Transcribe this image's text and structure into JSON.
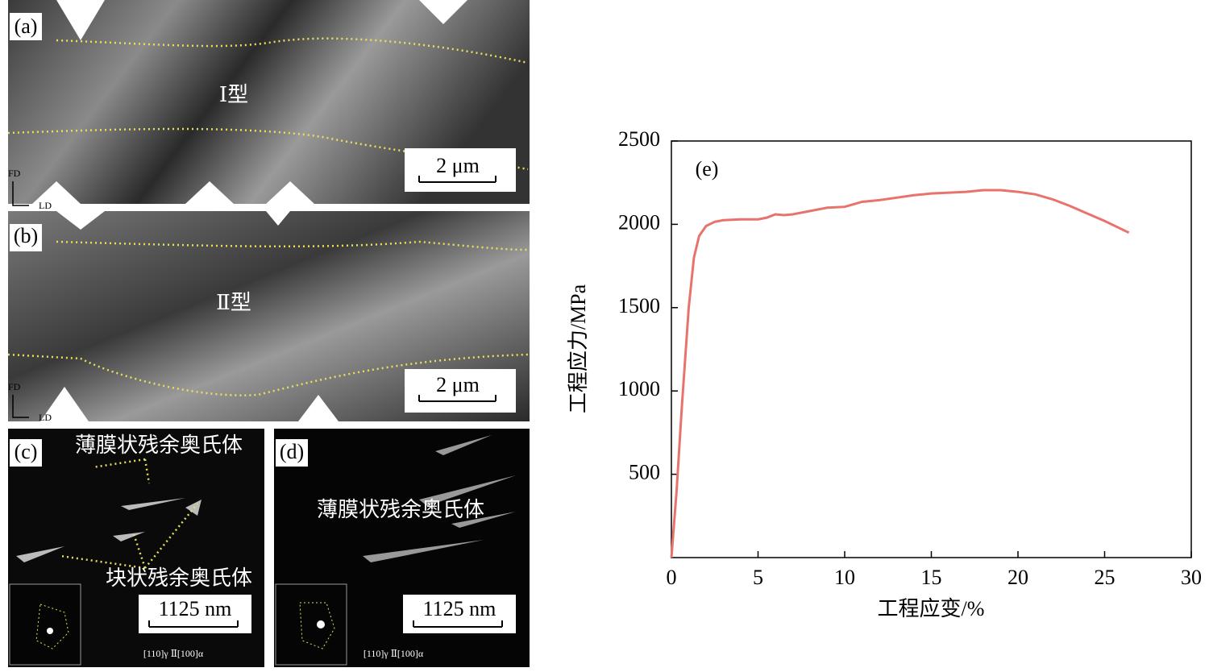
{
  "panels": [
    {
      "label": "(a)",
      "type_label": "Ⅰ型",
      "scale_bar": "2 μm",
      "axes": [
        "FD",
        "LD"
      ]
    },
    {
      "label": "(b)",
      "type_label": "Ⅱ型",
      "scale_bar": "2 μm",
      "axes": [
        "FD",
        "LD"
      ]
    },
    {
      "label": "(c)",
      "annotations": [
        "薄膜状残余奥氏体",
        "块状残余奥氏体"
      ],
      "scale_bar": "1125 nm",
      "diffraction": "[110]γ Ⅱ[100]α"
    },
    {
      "label": "(d)",
      "annotations": [
        "薄膜状残余奥氏体"
      ],
      "scale_bar": "1125 nm",
      "diffraction": "[110]γ Ⅱ[100]α"
    }
  ],
  "chart_data": {
    "type": "line",
    "annotation": "(e)",
    "xlabel": "工程应变/%",
    "ylabel": "工程应力/MPa",
    "x": [
      0,
      0.3,
      0.6,
      1.0,
      1.3,
      1.6,
      2,
      2.5,
      3,
      4,
      5,
      5.5,
      6,
      6.5,
      7,
      8,
      9,
      10,
      11,
      12,
      13,
      14,
      15,
      16,
      17,
      18,
      19,
      20,
      21,
      22,
      23,
      24,
      25,
      26.4
    ],
    "values": [
      0,
      400,
      900,
      1500,
      1800,
      1930,
      1990,
      2015,
      2025,
      2030,
      2030,
      2040,
      2060,
      2055,
      2060,
      2080,
      2100,
      2105,
      2135,
      2145,
      2160,
      2175,
      2185,
      2190,
      2195,
      2205,
      2205,
      2195,
      2180,
      2150,
      2110,
      2065,
      2020,
      1950
    ],
    "color": "#e8736c",
    "xlim": [
      0,
      30
    ],
    "xticks": [
      0,
      5,
      10,
      15,
      20,
      25,
      30
    ],
    "ylim": [
      0,
      2500
    ],
    "yticks": [
      500,
      1000,
      1500,
      2000,
      2500
    ]
  }
}
